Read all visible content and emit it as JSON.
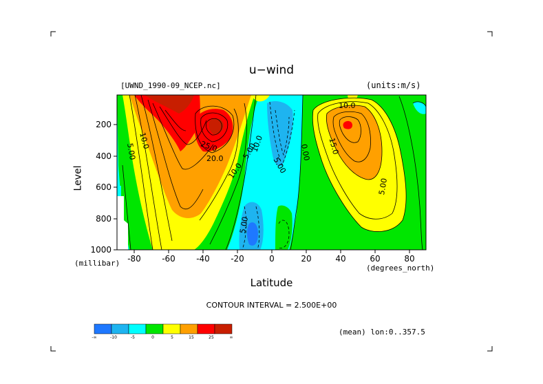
{
  "chart_data": {
    "type": "heatmap",
    "title": "u−wind",
    "file_label": "[UWND_1990-09_NCEP.nc]",
    "units_label": "(units:m/s)",
    "xlabel": "Latitude",
    "xunit": "(degrees_north)",
    "ylabel": "Level",
    "yunit": "(millibar)",
    "xlim": [
      -90,
      90
    ],
    "ylim": [
      1000,
      0
    ],
    "x_ticks": [
      "-80",
      "-60",
      "-40",
      "-20",
      "0",
      "20",
      "40",
      "60",
      "80"
    ],
    "y_ticks": [
      "200",
      "400",
      "600",
      "800",
      "1000"
    ],
    "contour_interval": "CONTOUR INTERVAL = 2.500E+00",
    "contour_labels": [
      "10.0",
      "5.00",
      "25.0",
      "20.0",
      "10.0",
      "5.00",
      "10.0",
      "5.00",
      "0.00",
      "15.0",
      "10.0",
      "5.00",
      "5.00"
    ],
    "colorbar": {
      "labels": [
        "-∞",
        "-10",
        "-5",
        "0",
        "5",
        "15",
        "25",
        "∞"
      ],
      "colors": [
        "#1e78ff",
        "#1eb4f0",
        "#00ffff",
        "#00e600",
        "#ffff00",
        "#ffa000",
        "#ff0000",
        "#c81e00"
      ]
    },
    "mean_label": "(mean) lon:0..357.5",
    "colors": {
      "dark_red": "#c81e00",
      "red": "#ff0000",
      "orange": "#ffa000",
      "yellow": "#ffff00",
      "green": "#00e600",
      "cyan": "#00ffff",
      "light_blue": "#1eb4f0",
      "blue": "#1e78ff"
    }
  }
}
